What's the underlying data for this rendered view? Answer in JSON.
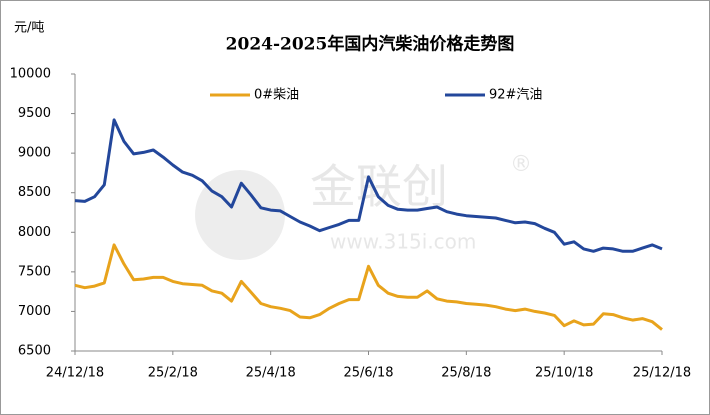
{
  "chart_data": {
    "type": "line",
    "title": "2024-2025年国内汽柴油价格走势图",
    "y_unit": "元/吨",
    "watermark": {
      "text": "金联创",
      "symbol": "®",
      "url": "www.315i.com"
    },
    "categories": [
      "24/12/18",
      null,
      null,
      null,
      null,
      null,
      null,
      null,
      null,
      null,
      "25/2/18",
      null,
      null,
      null,
      null,
      null,
      null,
      null,
      null,
      null,
      "25/4/18",
      null,
      null,
      null,
      null,
      null,
      null,
      null,
      null,
      null,
      "25/6/18",
      null,
      null,
      null,
      null,
      null,
      null,
      null,
      null,
      null,
      "25/8/18",
      null,
      null,
      null,
      null,
      null,
      null,
      null,
      null,
      null,
      "25/10/18",
      null,
      null,
      null,
      null,
      null,
      null,
      null,
      null,
      null,
      "25/12/18"
    ],
    "series": [
      {
        "name": "0#柴油",
        "color": "#e8a31c",
        "values": [
          7330,
          7300,
          7320,
          7360,
          7840,
          7600,
          7400,
          7410,
          7430,
          7430,
          7380,
          7350,
          7340,
          7330,
          7260,
          7230,
          7130,
          7380,
          7240,
          7100,
          7060,
          7040,
          7010,
          6930,
          6920,
          6960,
          7040,
          7100,
          7150,
          7150,
          7570,
          7330,
          7230,
          7190,
          7180,
          7180,
          7260,
          7160,
          7130,
          7120,
          7100,
          7090,
          7080,
          7060,
          7030,
          7010,
          7030,
          7000,
          6980,
          6950,
          6820,
          6880,
          6830,
          6840,
          6970,
          6960,
          6920,
          6890,
          6910,
          6870,
          6770
        ]
      },
      {
        "name": "92#汽油",
        "color": "#23479b",
        "values": [
          8400,
          8390,
          8450,
          8600,
          9420,
          9150,
          8990,
          9010,
          9040,
          8950,
          8850,
          8760,
          8720,
          8650,
          8520,
          8450,
          8320,
          8620,
          8470,
          8310,
          8280,
          8270,
          8200,
          8130,
          8080,
          8020,
          8060,
          8100,
          8150,
          8150,
          8700,
          8450,
          8340,
          8290,
          8280,
          8280,
          8300,
          8320,
          8260,
          8230,
          8210,
          8200,
          8190,
          8180,
          8150,
          8120,
          8130,
          8110,
          8050,
          8000,
          7850,
          7880,
          7790,
          7760,
          7800,
          7790,
          7760,
          7760,
          7800,
          7840,
          7790
        ]
      }
    ],
    "ylim": [
      6500,
      10000
    ],
    "yticks": [
      6500,
      7000,
      7500,
      8000,
      8500,
      9000,
      9500,
      10000
    ],
    "grid": false,
    "legend": "top"
  }
}
